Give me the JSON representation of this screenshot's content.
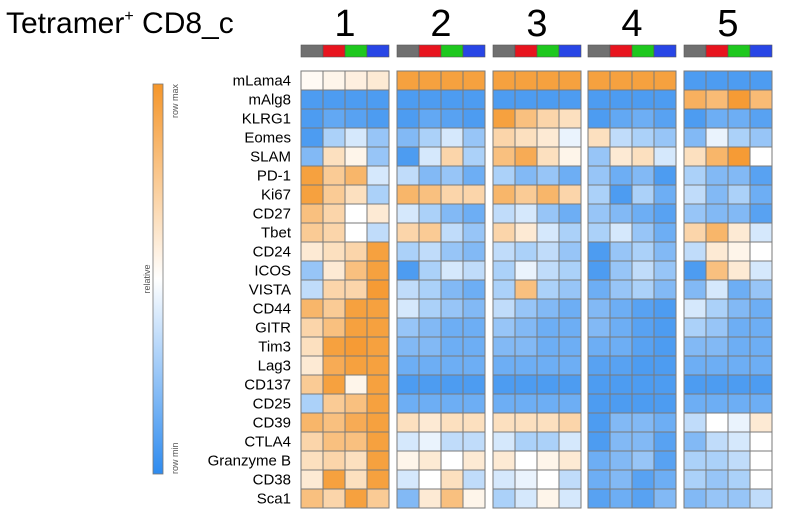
{
  "chart_data": {
    "type": "heatmap",
    "title": "Tetramer",
    "title_superscript": "+",
    "title_suffix": " CD8_c",
    "clusters": [
      "1",
      "2",
      "3",
      "4",
      "5"
    ],
    "subgroup_colors": [
      "#707070",
      "#e8141e",
      "#1ec81e",
      "#2846e6"
    ],
    "rows": [
      "mLama4",
      "mAlg8",
      "KLRG1",
      "Eomes",
      "SLAM",
      "PD-1",
      "Ki67",
      "CD27",
      "Tbet",
      "CD24",
      "ICOS",
      "VISTA",
      "CD44",
      "GITR",
      "Tim3",
      "Lag3",
      "CD137",
      "CD25",
      "CD39",
      "CTLA4",
      "Granzyme B",
      "CD38",
      "Sca1"
    ],
    "value_scale": [
      -1,
      1
    ],
    "values": [
      [
        0.05,
        0.1,
        0.15,
        0.2,
        0.9,
        0.9,
        0.9,
        0.9,
        0.9,
        0.9,
        0.9,
        0.9,
        0.9,
        0.9,
        0.9,
        0.9,
        -0.85,
        -0.85,
        -0.85,
        -0.85
      ],
      [
        -0.85,
        -0.85,
        -0.85,
        -0.85,
        -0.85,
        -0.85,
        -0.85,
        -0.85,
        -0.85,
        -0.85,
        -0.85,
        -0.85,
        -0.85,
        -0.85,
        -0.85,
        -0.85,
        0.75,
        0.65,
        0.95,
        0.65
      ],
      [
        -0.85,
        -0.75,
        -0.8,
        -0.85,
        -0.85,
        -0.75,
        -0.8,
        -0.85,
        0.9,
        0.6,
        0.4,
        0.3,
        -0.85,
        -0.75,
        -0.7,
        -0.8,
        -0.85,
        -0.7,
        -0.7,
        -0.8
      ],
      [
        -0.85,
        -0.4,
        -0.2,
        -0.5,
        -0.6,
        -0.4,
        -0.2,
        -0.5,
        0.4,
        0.3,
        0.2,
        -0.1,
        0.3,
        -0.3,
        -0.4,
        -0.5,
        -0.6,
        -0.1,
        -0.4,
        -0.5
      ],
      [
        -0.6,
        0.3,
        0.1,
        -0.5,
        -0.85,
        -0.2,
        0.4,
        -0.4,
        0.6,
        0.8,
        0.3,
        0.1,
        -0.5,
        0.2,
        0.3,
        -0.2,
        0.3,
        0.7,
        0.95,
        0.0
      ],
      [
        0.9,
        0.5,
        0.7,
        -0.2,
        -0.3,
        -0.6,
        -0.5,
        -0.7,
        -0.4,
        -0.6,
        -0.5,
        -0.7,
        -0.5,
        -0.7,
        -0.6,
        -0.85,
        -0.4,
        -0.6,
        -0.6,
        -0.8
      ],
      [
        0.9,
        0.5,
        0.3,
        -0.4,
        0.7,
        0.6,
        0.4,
        0.4,
        0.7,
        0.5,
        0.7,
        0.4,
        -0.4,
        -0.85,
        -0.4,
        -0.7,
        -0.3,
        -0.6,
        -0.4,
        -0.7
      ],
      [
        0.6,
        0.4,
        0.0,
        0.2,
        -0.2,
        -0.4,
        -0.6,
        -0.7,
        -0.3,
        -0.2,
        -0.5,
        -0.7,
        -0.5,
        -0.6,
        -0.7,
        -0.8,
        -0.5,
        -0.6,
        -0.6,
        -0.8
      ],
      [
        0.5,
        0.4,
        0.0,
        -0.3,
        0.4,
        0.5,
        -0.3,
        -0.5,
        0.4,
        0.2,
        -0.2,
        -0.4,
        -0.4,
        -0.2,
        -0.5,
        -0.7,
        0.4,
        0.7,
        0.2,
        -0.2
      ],
      [
        0.2,
        0.3,
        0.4,
        0.9,
        -0.4,
        -0.3,
        -0.5,
        -0.6,
        -0.3,
        -0.4,
        -0.3,
        -0.5,
        -0.85,
        -0.5,
        -0.4,
        -0.6,
        -0.3,
        0.2,
        0.1,
        0.0
      ],
      [
        -0.5,
        0.2,
        0.6,
        0.9,
        -0.85,
        -0.4,
        -0.2,
        -0.3,
        -0.4,
        -0.1,
        -0.3,
        -0.4,
        -0.85,
        -0.5,
        -0.3,
        -0.5,
        -0.85,
        0.6,
        0.2,
        -0.2
      ],
      [
        -0.3,
        0.4,
        0.4,
        0.95,
        -0.3,
        -0.4,
        -0.6,
        -0.7,
        -0.4,
        0.6,
        -0.4,
        -0.5,
        -0.7,
        -0.5,
        -0.4,
        -0.6,
        -0.6,
        -0.2,
        -0.7,
        -0.5
      ],
      [
        0.7,
        0.5,
        0.9,
        0.9,
        -0.2,
        -0.4,
        -0.5,
        -0.6,
        -0.3,
        -0.5,
        -0.6,
        -0.7,
        -0.6,
        -0.7,
        -0.8,
        -0.85,
        -0.2,
        -0.4,
        -0.6,
        -0.7
      ],
      [
        0.4,
        0.6,
        0.9,
        0.9,
        -0.5,
        -0.6,
        -0.7,
        -0.7,
        -0.5,
        -0.6,
        -0.7,
        -0.7,
        -0.6,
        -0.7,
        -0.8,
        -0.85,
        -0.4,
        -0.5,
        -0.7,
        -0.7
      ],
      [
        0.3,
        0.9,
        0.95,
        0.9,
        -0.6,
        -0.6,
        -0.7,
        -0.7,
        -0.6,
        -0.6,
        -0.7,
        -0.7,
        -0.7,
        -0.7,
        -0.8,
        -0.85,
        -0.6,
        -0.6,
        -0.7,
        -0.7
      ],
      [
        0.2,
        0.8,
        0.9,
        0.9,
        -0.7,
        -0.7,
        -0.7,
        -0.7,
        -0.7,
        -0.7,
        -0.7,
        -0.7,
        -0.8,
        -0.8,
        -0.85,
        -0.85,
        -0.7,
        -0.7,
        -0.7,
        -0.7
      ],
      [
        0.5,
        0.9,
        0.1,
        0.9,
        -0.85,
        -0.85,
        -0.85,
        -0.85,
        -0.85,
        -0.85,
        -0.85,
        -0.85,
        -0.85,
        -0.85,
        -0.85,
        -0.85,
        -0.85,
        -0.85,
        -0.85,
        -0.85
      ],
      [
        -0.4,
        0.5,
        0.6,
        0.9,
        -0.7,
        -0.7,
        -0.7,
        -0.7,
        -0.7,
        -0.7,
        -0.7,
        -0.7,
        -0.85,
        -0.85,
        -0.85,
        -0.85,
        -0.7,
        -0.7,
        -0.7,
        -0.7
      ],
      [
        0.7,
        0.6,
        0.8,
        0.9,
        0.3,
        0.2,
        0.3,
        0.3,
        0.3,
        0.3,
        0.3,
        0.4,
        -0.85,
        -0.6,
        -0.6,
        -0.7,
        -0.3,
        0.0,
        -0.1,
        0.2
      ],
      [
        0.4,
        0.6,
        0.6,
        0.9,
        -0.2,
        -0.1,
        -0.3,
        -0.3,
        -0.2,
        -0.4,
        -0.4,
        -0.2,
        -0.85,
        -0.6,
        -0.6,
        -0.8,
        -0.6,
        -0.3,
        -0.2,
        0.0
      ],
      [
        0.3,
        0.4,
        0.3,
        0.9,
        0.1,
        0.2,
        0.0,
        0.2,
        0.2,
        0.0,
        0.1,
        0.2,
        -0.7,
        -0.6,
        -0.5,
        -0.8,
        -0.4,
        -0.4,
        -0.3,
        0.0
      ],
      [
        0.2,
        0.9,
        0.3,
        0.9,
        -0.2,
        0.0,
        0.3,
        -0.3,
        -0.2,
        -0.1,
        0.0,
        -0.3,
        -0.7,
        -0.6,
        -0.8,
        -0.7,
        -0.4,
        -0.5,
        -0.4,
        0.0
      ],
      [
        0.6,
        0.4,
        0.9,
        0.5,
        -0.6,
        0.2,
        0.6,
        0.1,
        -0.4,
        -0.2,
        0.1,
        -0.2,
        -0.8,
        -0.7,
        -0.8,
        -0.6,
        -0.6,
        -0.5,
        -0.5,
        -0.3
      ]
    ],
    "legend": {
      "label": "relative",
      "max_label": "row max",
      "min_label": "row min",
      "placement": "left",
      "max_color": "#f5962a",
      "mid_color": "#ffffff",
      "min_color": "#2e8bef"
    },
    "grid_color": "#7a7a7a"
  }
}
